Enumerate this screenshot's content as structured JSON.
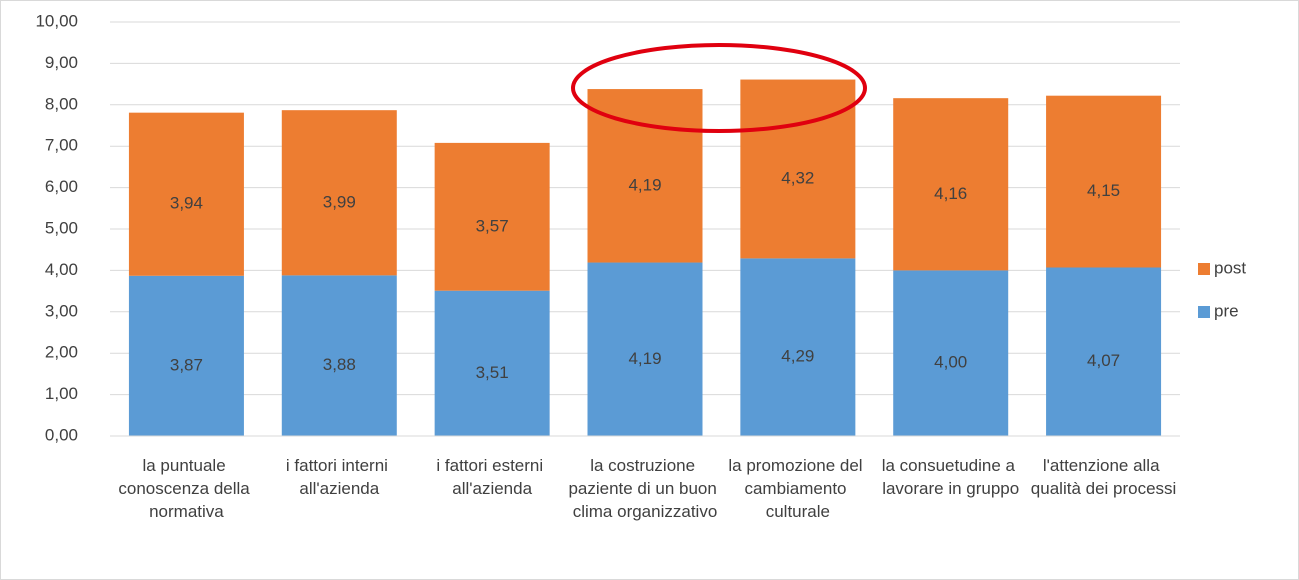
{
  "chart_data": {
    "type": "stacked_bar",
    "categories": [
      "la puntuale conoscenza della normativa",
      "i fattori interni all'azienda",
      "i fattori esterni all'azienda",
      "la costruzione paziente di un buon clima organizzativo",
      "la promozione del cambiamento culturale",
      "la consuetudine a lavorare in gruppo",
      "l'attenzione alla qualità dei processi"
    ],
    "series": [
      {
        "name": "pre",
        "color": "#5b9bd5",
        "values": [
          3.87,
          3.88,
          3.51,
          4.19,
          4.29,
          4.0,
          4.07
        ],
        "value_labels": [
          "3,87",
          "3,88",
          "3,51",
          "4,19",
          "4,29",
          "4,00",
          "4,07"
        ]
      },
      {
        "name": "post",
        "color": "#ed7d31",
        "values": [
          3.94,
          3.99,
          3.57,
          4.19,
          4.32,
          4.16,
          4.15
        ],
        "value_labels": [
          "3,94",
          "3,99",
          "3,57",
          "4,19",
          "4,32",
          "4,16",
          "4,15"
        ]
      }
    ],
    "ylim": [
      0,
      10
    ],
    "yticks": [
      {
        "value": 0,
        "label": "0,00"
      },
      {
        "value": 1,
        "label": "1,00"
      },
      {
        "value": 2,
        "label": "2,00"
      },
      {
        "value": 3,
        "label": "3,00"
      },
      {
        "value": 4,
        "label": "4,00"
      },
      {
        "value": 5,
        "label": "5,00"
      },
      {
        "value": 6,
        "label": "6,00"
      },
      {
        "value": 7,
        "label": "7,00"
      },
      {
        "value": 8,
        "label": "8,00"
      },
      {
        "value": 9,
        "label": "9,00"
      },
      {
        "value": 10,
        "label": "10,00"
      }
    ],
    "grid": true,
    "legend": "right"
  }
}
